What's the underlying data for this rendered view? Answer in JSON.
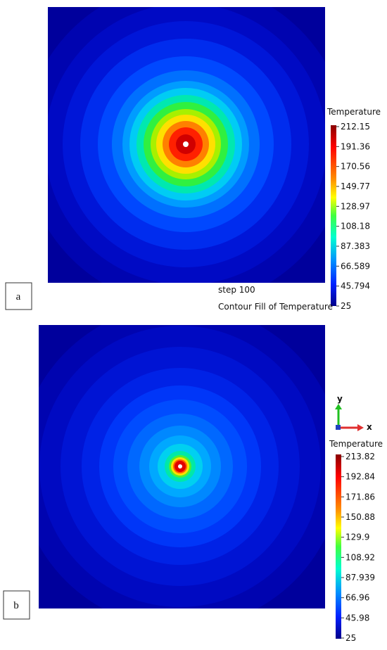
{
  "panels": [
    {
      "label": "a",
      "legend_title": "Temperature",
      "legend_ticks": [
        "212.15",
        "191.36",
        "170.56",
        "149.77",
        "128.97",
        "108.18",
        "87.383",
        "66.589",
        "45.794",
        "25"
      ],
      "step": "step 100",
      "caption": "Contour Fill of Temperature"
    },
    {
      "label": "b",
      "legend_title": "Temperature",
      "legend_ticks": [
        "213.82",
        "192.84",
        "171.86",
        "150.88",
        "129.9",
        "108.92",
        "87.939",
        "66.96",
        "45.98",
        "25"
      ],
      "axis_x": "x",
      "axis_y": "y"
    }
  ]
}
